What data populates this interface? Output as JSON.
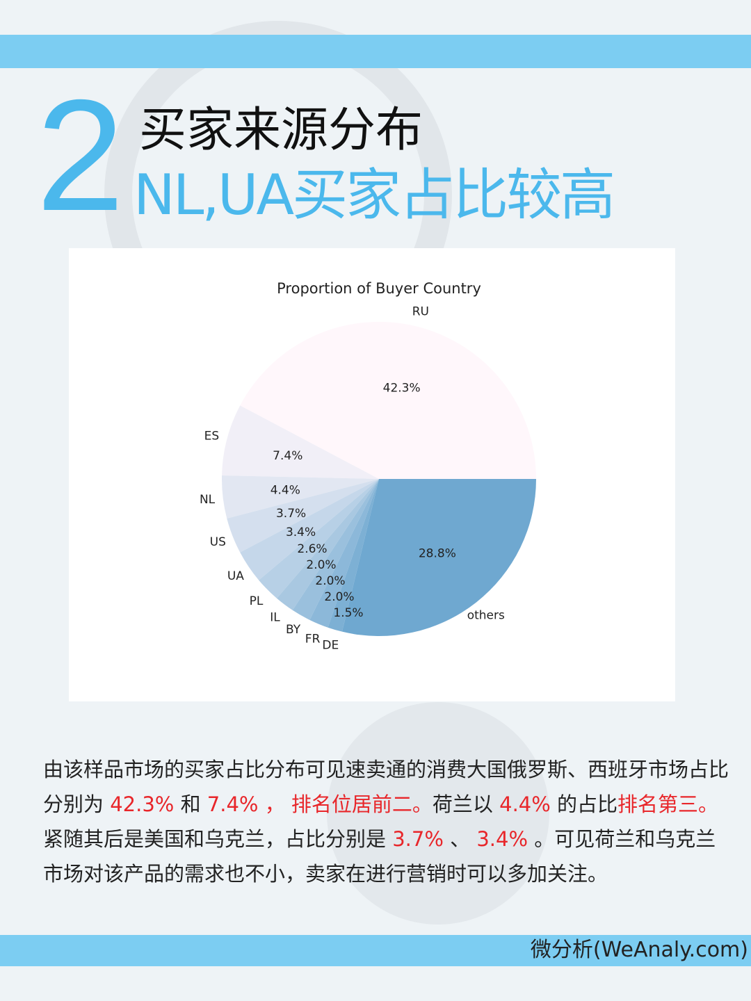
{
  "header": {
    "number": "2",
    "title": "买家来源分布",
    "subtitle": "NL,UA买家占比较高"
  },
  "colors": {
    "accent": "#4bb8ec",
    "band": "#7ccdf2",
    "highlight": "#e8262a"
  },
  "chart_data": {
    "type": "pie",
    "title": "Proportion of Buyer Country",
    "start_angle": 0,
    "direction": "counterclockwise",
    "colormap": "PuBu",
    "categories": [
      "RU",
      "ES",
      "NL",
      "US",
      "UA",
      "PL",
      "IL",
      "BY",
      "FR",
      "DE",
      "others"
    ],
    "values": [
      42.3,
      7.4,
      4.4,
      3.7,
      3.4,
      2.6,
      2.0,
      2.0,
      2.0,
      1.5,
      28.8
    ],
    "labels": [
      "42.3%",
      "7.4%",
      "4.4%",
      "3.7%",
      "3.4%",
      "2.6%",
      "2.0%",
      "2.0%",
      "2.0%",
      "1.5%",
      "28.8%"
    ]
  },
  "paragraph": [
    {
      "t": "由该样品市场的买家占比分布可见速卖通的消费大国俄罗斯、西班牙市场占比分别为 ",
      "red": false
    },
    {
      "t": "42.3%",
      "red": true
    },
    {
      "t": " 和 ",
      "red": false
    },
    {
      "t": "7.4% ， 排名位居前二。",
      "red": true
    },
    {
      "t": "荷兰以 ",
      "red": false
    },
    {
      "t": "4.4%",
      "red": true
    },
    {
      "t": " 的占比",
      "red": false
    },
    {
      "t": "排名第三。",
      "red": true
    },
    {
      "t": "紧随其后是美国和乌克兰，占比分别是 ",
      "red": false
    },
    {
      "t": "3.7%",
      "red": true
    },
    {
      "t": " 、 ",
      "red": false
    },
    {
      "t": "3.4%",
      "red": true
    },
    {
      "t": " 。可见荷兰和乌克兰市场对该产品的需求也不小，卖家在进行营销时可以多加关注。",
      "red": false
    }
  ],
  "footer": {
    "brand": "微分析(WeAnaly.com)"
  }
}
